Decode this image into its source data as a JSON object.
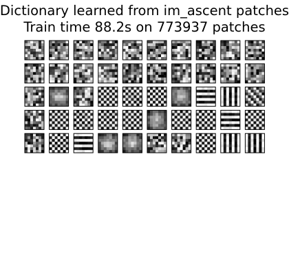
{
  "figure": {
    "title_line_1": "Dictionary learned from im_ascent patches",
    "title_line_2": "Train time 88.2s on 773937 patches"
  },
  "dictionary": {
    "rows": 5,
    "cols": 10,
    "patch_size": 7,
    "colormap": "gray",
    "frame_color": "#000000",
    "atom_kinds": [
      [
        "noise",
        "noise",
        "noise",
        "noise",
        "noise",
        "noise",
        "noise",
        "noise",
        "noise",
        "noise"
      ],
      [
        "noise",
        "noise",
        "noise",
        "noise",
        "noise",
        "noise",
        "noise",
        "noise",
        "noise",
        "noise"
      ],
      [
        "noise",
        "soft",
        "noise",
        "checker",
        "checker",
        "checker",
        "soft",
        "hstripe",
        "vstripe",
        "diag"
      ],
      [
        "noise",
        "checker",
        "checker",
        "checker",
        "checker",
        "soft",
        "checker",
        "checker",
        "hstripe",
        "checker"
      ],
      [
        "noise",
        "checker",
        "hstripe",
        "soft",
        "soft",
        "noise",
        "noise",
        "checker",
        "vstripe",
        "vstripe"
      ]
    ]
  }
}
